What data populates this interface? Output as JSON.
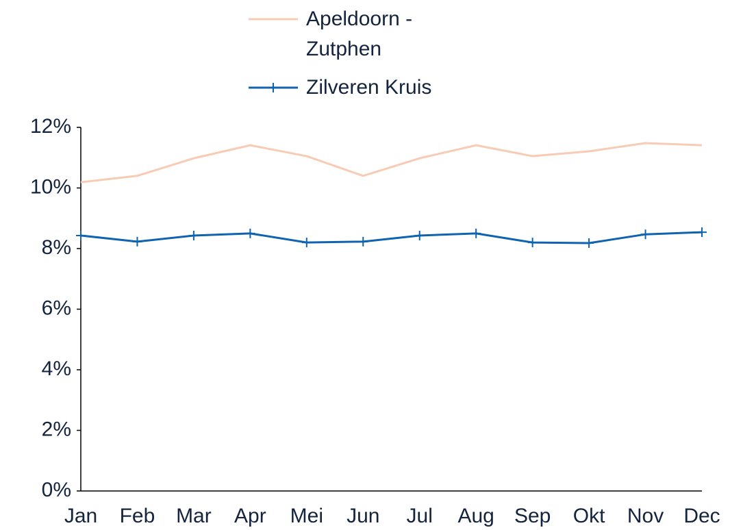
{
  "chart_data": {
    "type": "line",
    "categories": [
      "Jan",
      "Feb",
      "Mar",
      "Apr",
      "Mei",
      "Jun",
      "Jul",
      "Aug",
      "Sep",
      "Okt",
      "Nov",
      "Dec"
    ],
    "series": [
      {
        "name": "Apeldoorn -Zutphen",
        "color": "#f8cbb4",
        "marker": false,
        "values": [
          10.19,
          10.4,
          10.98,
          11.41,
          11.05,
          10.4,
          10.98,
          11.41,
          11.05,
          11.21,
          11.48,
          11.41
        ]
      },
      {
        "name": "Zilveren Kruis",
        "color": "#0f63b0",
        "marker": true,
        "values": [
          8.43,
          8.23,
          8.43,
          8.5,
          8.2,
          8.23,
          8.43,
          8.5,
          8.2,
          8.18,
          8.47,
          8.54
        ]
      }
    ],
    "ylim": [
      0,
      12
    ],
    "yticks": [
      {
        "value": 0,
        "label": "0%"
      },
      {
        "value": 2,
        "label": "2%"
      },
      {
        "value": 4,
        "label": "4%"
      },
      {
        "value": 6,
        "label": "6%"
      },
      {
        "value": 8,
        "label": "8%"
      },
      {
        "value": 10,
        "label": "10%"
      },
      {
        "value": 12,
        "label": "12%"
      }
    ],
    "grid": false,
    "legend": "top"
  }
}
